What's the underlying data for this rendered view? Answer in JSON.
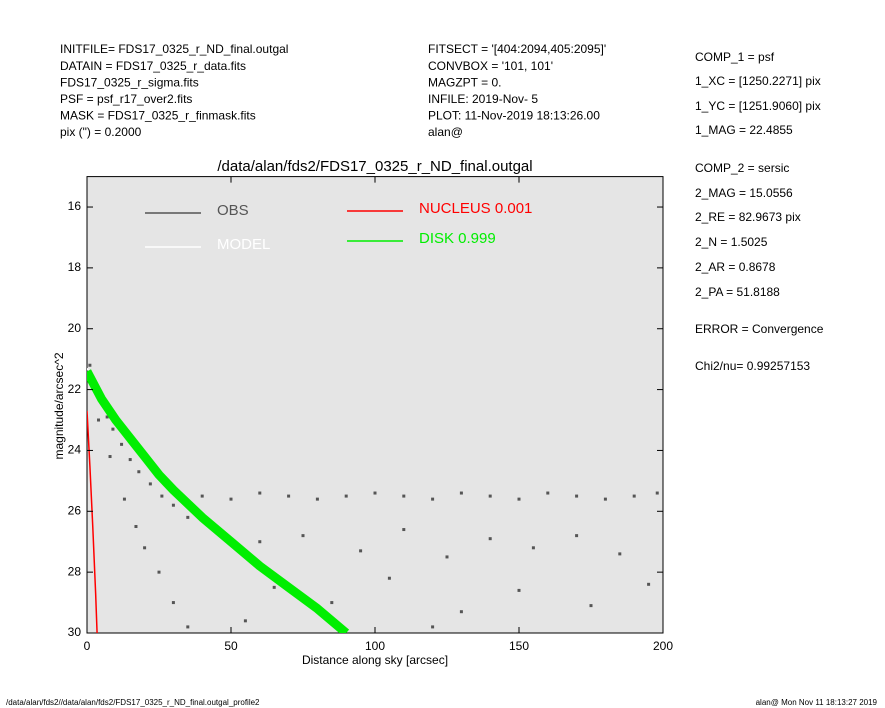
{
  "header": {
    "left": [
      "INITFILE= FDS17_0325_r_ND_final.outgal",
      "DATAIN  = FDS17_0325_r_data.fits",
      "FDS17_0325_r_sigma.fits",
      "PSF     = psf_r17_over2.fits",
      "MASK    = FDS17_0325_r_finmask.fits",
      "pix (\") =  0.2000"
    ],
    "middle": [
      "FITSECT = '[404:2094,405:2095]'",
      "CONVBOX = '101, 101'",
      "MAGZPT  =               0.",
      "INFILE: 2019-Nov- 5",
      "PLOT: 11-Nov-2019 18:13:26.00",
      "alan@"
    ],
    "right": [
      "COMP_1  = psf",
      "1_XC    = [1250.2271] pix",
      "1_YC    = [1251.9060] pix",
      "1_MAG   = 22.4855",
      "COMP_2  = sersic",
      "2_MAG   = 15.0556",
      "2_RE    = 82.9673 pix",
      "2_N     = 1.5025",
      "2_AR    = 0.8678",
      "2_PA    = 51.8188",
      "ERROR   = Convergence",
      "Chi2/nu=      0.99257153"
    ]
  },
  "footer": {
    "left": "/data/alan/fds2//data/alan/fds2/FDS17_0325_r_ND_final.outgal_profile2",
    "right": "alan@  Mon Nov 11 18:13:27 2019"
  },
  "chart_data": {
    "type": "scatter",
    "title": "/data/alan/fds2/FDS17_0325_r_ND_final.outgal",
    "x_label": "Distance along sky [arcsec]",
    "y_label": "magnitude/arcsec^2",
    "xlim": [
      0,
      200
    ],
    "xticks": [
      0,
      50,
      100,
      150,
      200
    ],
    "ylim": [
      15,
      30
    ],
    "yticks": [
      16,
      18,
      20,
      22,
      24,
      26,
      28,
      30
    ],
    "y_inverted": true,
    "background": "#e5e5e5",
    "series": [
      {
        "name": "OBS",
        "kind": "points",
        "color": "#555555",
        "x": [
          1,
          2,
          3,
          5,
          7,
          9,
          12,
          15,
          18,
          22,
          26,
          30,
          35,
          4,
          8,
          13,
          17,
          20,
          25,
          30,
          35,
          40,
          50,
          60,
          70,
          80,
          90,
          100,
          110,
          120,
          130,
          140,
          150,
          160,
          170,
          180,
          190,
          198,
          45,
          60,
          75,
          95,
          110,
          125,
          140,
          155,
          170,
          185,
          65,
          85,
          105,
          130,
          150,
          175,
          195,
          55,
          120
        ],
        "values": [
          21.2,
          21.6,
          22.0,
          22.4,
          22.9,
          23.3,
          23.8,
          24.3,
          24.7,
          25.1,
          25.5,
          25.8,
          26.2,
          23.0,
          24.2,
          25.6,
          26.5,
          27.2,
          28.0,
          29.0,
          29.8,
          25.5,
          25.6,
          25.4,
          25.5,
          25.6,
          25.5,
          25.4,
          25.5,
          25.6,
          25.4,
          25.5,
          25.6,
          25.4,
          25.5,
          25.6,
          25.5,
          25.4,
          26.5,
          27.0,
          26.8,
          27.3,
          26.6,
          27.5,
          26.9,
          27.2,
          26.8,
          27.4,
          28.5,
          29.0,
          28.2,
          29.3,
          28.6,
          29.1,
          28.4,
          29.6,
          29.8
        ]
      },
      {
        "name": "MODEL",
        "kind": "line",
        "color": "#ffffff",
        "width": 1.5,
        "x": [
          0,
          10,
          20,
          30,
          40,
          50
        ],
        "values": [
          21.3,
          22.9,
          24.1,
          25.2,
          26.1,
          26.9
        ]
      },
      {
        "name": "NUCLEUS  0.001",
        "kind": "line",
        "color": "#ff0000",
        "width": 1.5,
        "x": [
          0,
          1,
          2,
          3,
          3.5
        ],
        "values": [
          22.7,
          24.5,
          26.5,
          28.7,
          30
        ]
      },
      {
        "name": "DISK  0.999",
        "kind": "line",
        "color": "#00ee00",
        "width": 9,
        "x": [
          0,
          5,
          10,
          15,
          20,
          25,
          30,
          40,
          50,
          60,
          70,
          80,
          90
        ],
        "values": [
          21.4,
          22.3,
          23.0,
          23.6,
          24.2,
          24.8,
          25.3,
          26.2,
          27.0,
          27.8,
          28.5,
          29.2,
          30.0
        ]
      }
    ]
  }
}
